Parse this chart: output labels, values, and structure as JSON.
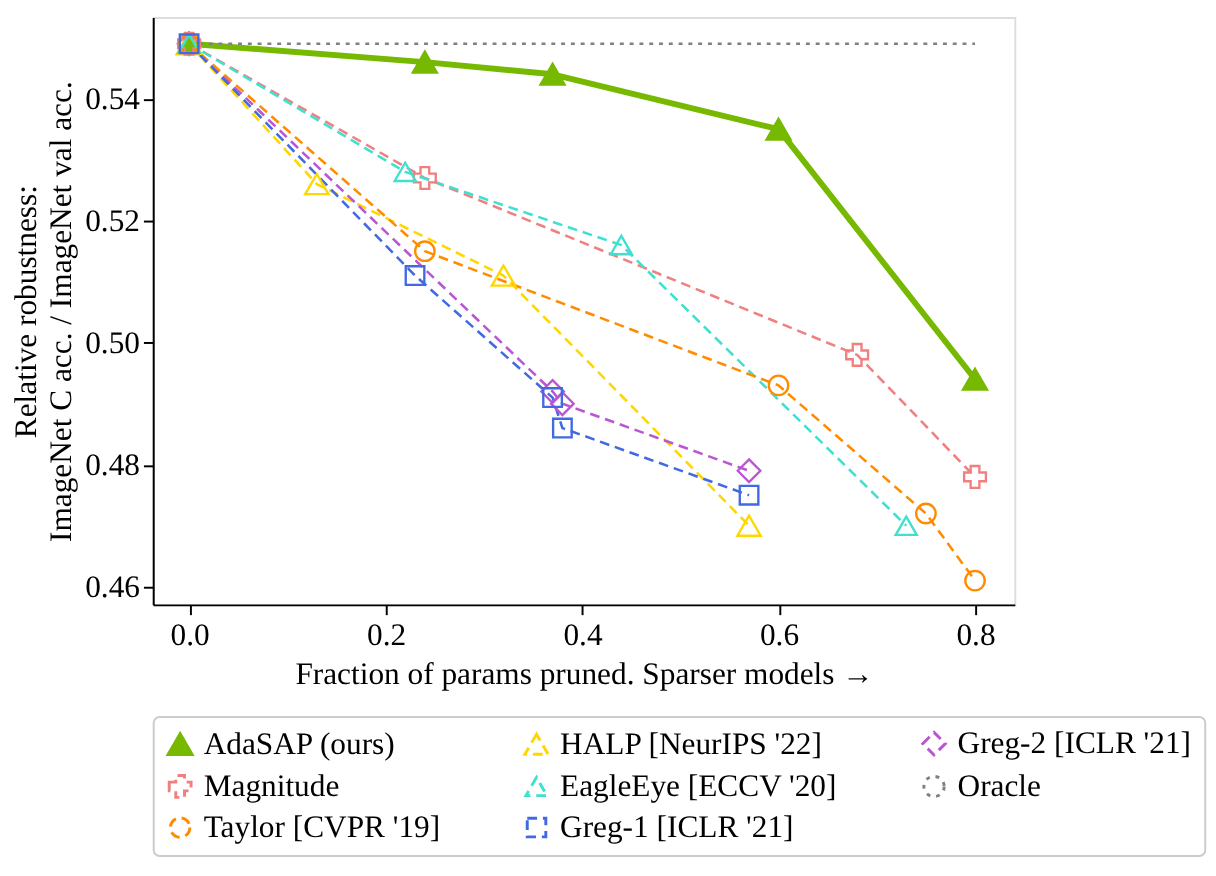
{
  "chart_data": {
    "type": "line",
    "xlabel": "Fraction of params pruned. Sparser models →",
    "ylabel": "Relative robustness:\nImageNet C acc. / ImageNet val acc.",
    "xlim": [
      -0.037,
      0.84
    ],
    "ylim": [
      0.4571,
      0.5534
    ],
    "xticks": [
      {
        "value": 0,
        "label": "0.0"
      },
      0.2,
      0.4,
      0.6,
      0.8
    ],
    "yticks": [
      {
        "value": 0.46,
        "label": "0.46"
      },
      {
        "value": 0.48,
        "label": "0.48"
      },
      {
        "value": 0.5,
        "label": "0.50"
      },
      {
        "value": 0.52,
        "label": "0.52"
      },
      {
        "value": 0.54,
        "label": "0.54"
      }
    ],
    "grid": false,
    "legend": "bottom",
    "series": [
      {
        "name": "AdaSAP (ours)",
        "color": "#76b900",
        "marker": "triangle",
        "line_style": "solid",
        "x": [
          0,
          0.24,
          0.37,
          0.6,
          0.8
        ],
        "values": [
          0.549,
          0.546,
          0.544,
          0.535,
          0.494
        ]
      },
      {
        "name": "Magnitude",
        "color": "#f08080",
        "marker": "cross",
        "line_style": "dashed",
        "x": [
          0,
          0.24,
          0.68,
          0.8
        ],
        "values": [
          0.549,
          0.527,
          0.498,
          0.478
        ]
      },
      {
        "name": "Taylor [CVPR '19]",
        "color": "#ff8c00",
        "marker": "circle",
        "line_style": "dashed",
        "x": [
          0,
          0.24,
          0.6,
          0.75,
          0.8
        ],
        "values": [
          0.549,
          0.515,
          0.493,
          0.472,
          0.461
        ]
      },
      {
        "name": "HALP [NeurIPS '22]",
        "color": "#ffd700",
        "marker": "triangle",
        "line_style": "dashed",
        "x": [
          0,
          0.13,
          0.32,
          0.57
        ],
        "values": [
          0.549,
          0.526,
          0.511,
          0.47
        ]
      },
      {
        "name": "EagleEye [ECCV '20]",
        "color": "#40e0d0",
        "marker": "triangle",
        "line_style": "dashed",
        "x": [
          0,
          0.22,
          0.44,
          0.73
        ],
        "values": [
          0.549,
          0.528,
          0.516,
          0.47
        ]
      },
      {
        "name": "Greg-1 [ICLR '21]",
        "color": "#4169e1",
        "marker": "square",
        "line_style": "dashed",
        "x": [
          0,
          0.23,
          0.37,
          0.38,
          0.57
        ],
        "values": [
          0.549,
          0.511,
          0.491,
          0.486,
          0.475
        ]
      },
      {
        "name": "Greg-2 [ICLR '21]",
        "color": "#ba55d3",
        "marker": "diamond",
        "line_style": "dashed",
        "x": [
          0,
          0.37,
          0.38,
          0.57
        ],
        "values": [
          0.549,
          0.492,
          0.49,
          0.479
        ]
      },
      {
        "name": "Oracle",
        "color": "#808080",
        "marker": "none",
        "line_style": "dotted",
        "x": [
          0,
          0.8
        ],
        "values": [
          0.549,
          0.549
        ]
      }
    ]
  }
}
